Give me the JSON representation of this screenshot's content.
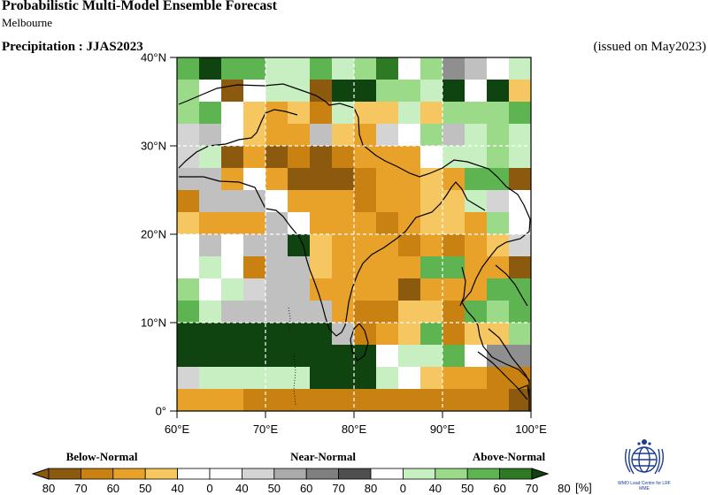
{
  "header": {
    "title": "Probabilistic Multi-Model Ensemble Forecast",
    "subtitle": "Melbourne",
    "parameter": "Precipitation : JJAS2023",
    "issued": "(issued on May2023)"
  },
  "map": {
    "lon_range": [
      60,
      100
    ],
    "lat_range": [
      0,
      40
    ],
    "cell_deg": 2.5,
    "y_ticks": [
      "40°N",
      "30°N",
      "20°N",
      "10°N",
      "0°"
    ],
    "x_ticks": [
      "60°E",
      "70°E",
      "80°E",
      "90°E",
      "100°E"
    ],
    "grid_lines": {
      "lon": [
        70,
        80,
        90
      ],
      "lat": [
        10,
        20,
        30
      ],
      "style": "dashed white"
    },
    "coastline_color": "#000000",
    "cells": [
      "F__PP+H*H.BAPWBB",
      "PP,%(WH=#=CCPCHPC(",
      "CPW=%=;H=H==H=HC",
      "XCWP%%W%%WHWH%=C",
      "H%W;H==W%B=HH=,",
      "C,T%%WW(WWXB%C=%",
      "TT;T;TT%%%%%%%CC",
      "XB;HP%%%%%%CCHCH",
      "B,W,B%%%%%%%(X=HW",
      "Y,,%YCCB%B+H%PCP",
      "Y,,#=H=;HYXC(",
      "XY=HW%PYC%%C"
    ],
    "note": "cells encoded row-major from 40N southward; symbols map to category legend"
  },
  "legend": {
    "categories": [
      "Below-Normal",
      "Near-Normal",
      "Above-Normal"
    ],
    "labels": [
      "80",
      "70",
      "60",
      "50",
      "40",
      "0",
      "40",
      "50",
      "60",
      "70",
      "80",
      "0",
      "40",
      "50",
      "60",
      "70",
      "80"
    ],
    "unit": "[%]",
    "colors": {
      "below": [
        "#8b5a0e",
        "#c98212",
        "#e8a22a",
        "#f6c760",
        "#ffffff"
      ],
      "near": [
        "#ffffff",
        "#d4d4d4",
        "#aaaaaa",
        "#7f7f7f",
        "#4f4f4f"
      ],
      "above": [
        "#ffffff",
        "#c8efc2",
        "#9ada89",
        "#5eb451",
        "#2e7a24",
        "#0f4410"
      ]
    }
  },
  "logo": {
    "caption": "WMO Lead Centre for LRF MME"
  }
}
